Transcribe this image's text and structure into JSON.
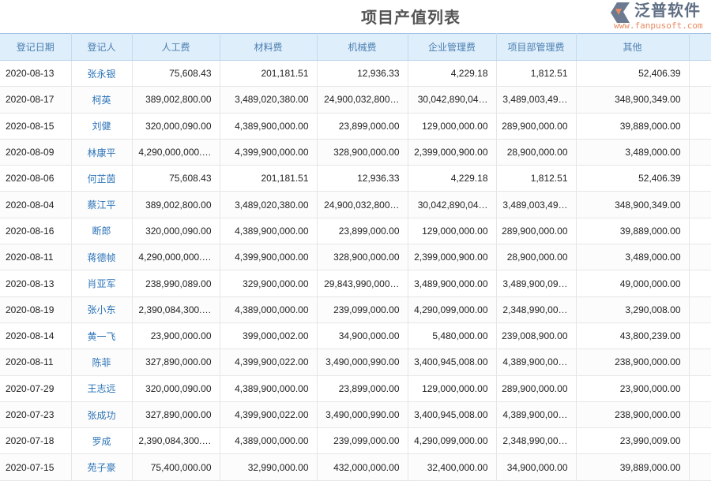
{
  "title": "项目产值列表",
  "columns": [
    "登记日期",
    "登记人",
    "人工费",
    "材料费",
    "机械费",
    "企业管理费",
    "项目部管理费",
    "其他",
    ""
  ],
  "rows": [
    [
      "2020-08-13",
      "张永银",
      "75,608.43",
      "201,181.51",
      "12,936.33",
      "4,229.18",
      "1,812.51",
      "52,406.39"
    ],
    [
      "2020-08-17",
      "柯英",
      "389,002,800.00",
      "3,489,020,380.00",
      "24,900,032,800…",
      "30,042,890,04…",
      "3,489,003,49…",
      "348,900,349.00"
    ],
    [
      "2020-08-15",
      "刘健",
      "320,000,090.00",
      "4,389,900,000.00",
      "23,899,000.00",
      "129,000,000.00",
      "289,900,000.00",
      "39,889,000.00"
    ],
    [
      "2020-08-09",
      "林康平",
      "4,290,000,000.…",
      "4,399,900,000.00",
      "328,900,000.00",
      "2,399,000,900.00",
      "28,900,000.00",
      "3,489,000.00"
    ],
    [
      "2020-08-06",
      "何芷茵",
      "75,608.43",
      "201,181.51",
      "12,936.33",
      "4,229.18",
      "1,812.51",
      "52,406.39"
    ],
    [
      "2020-08-04",
      "蔡江平",
      "389,002,800.00",
      "3,489,020,380.00",
      "24,900,032,800…",
      "30,042,890,04…",
      "3,489,003,49…",
      "348,900,349.00"
    ],
    [
      "2020-08-16",
      "断郎",
      "320,000,090.00",
      "4,389,900,000.00",
      "23,899,000.00",
      "129,000,000.00",
      "289,900,000.00",
      "39,889,000.00"
    ],
    [
      "2020-08-11",
      "蒋德帧",
      "4,290,000,000.…",
      "4,399,900,000.00",
      "328,900,000.00",
      "2,399,000,900.00",
      "28,900,000.00",
      "3,489,000.00"
    ],
    [
      "2020-08-13",
      "肖亚军",
      "238,990,089.00",
      "329,900,000.00",
      "29,843,990,000…",
      "3,489,900,000.00",
      "3,489,900,09…",
      "49,000,000.00"
    ],
    [
      "2020-08-19",
      "张小东",
      "2,390,084,300.…",
      "4,389,000,000.00",
      "239,099,000.00",
      "4,290,099,000.00",
      "2,348,990,00…",
      "3,290,008.00"
    ],
    [
      "2020-08-14",
      "黄一飞",
      "23,900,000.00",
      "399,000,002.00",
      "34,900,000.00",
      "5,480,000.00",
      "239,008,900.00",
      "43,800,239.00"
    ],
    [
      "2020-08-11",
      "陈菲",
      "327,890,000.00",
      "4,399,900,022.00",
      "3,490,000,990.00",
      "3,400,945,008.00",
      "4,389,900,00…",
      "238,900,000.00"
    ],
    [
      "2020-07-29",
      "王志远",
      "320,000,090.00",
      "4,389,900,000.00",
      "23,899,000.00",
      "129,000,000.00",
      "289,900,000.00",
      "23,900,000.00"
    ],
    [
      "2020-07-23",
      "张成功",
      "327,890,000.00",
      "4,399,900,022.00",
      "3,490,000,990.00",
      "3,400,945,008.00",
      "4,389,900,00…",
      "238,900,000.00"
    ],
    [
      "2020-07-18",
      "罗成",
      "2,390,084,300.…",
      "4,389,000,000.00",
      "239,099,000.00",
      "4,290,099,000.00",
      "2,348,990,00…",
      "23,990,009.00"
    ],
    [
      "2020-07-15",
      "苑子豪",
      "75,400,000.00",
      "32,990,000.00",
      "432,000,000.00",
      "32,400,000.00",
      "34,900,000.00",
      "39,889,000.00"
    ]
  ],
  "watermark": {
    "name": "泛普软件",
    "url": "www.fanpusoft.com"
  },
  "colors": {
    "header_bg": "#dfeefb",
    "header_text": "#4a7fb0",
    "link": "#2d74b8"
  }
}
